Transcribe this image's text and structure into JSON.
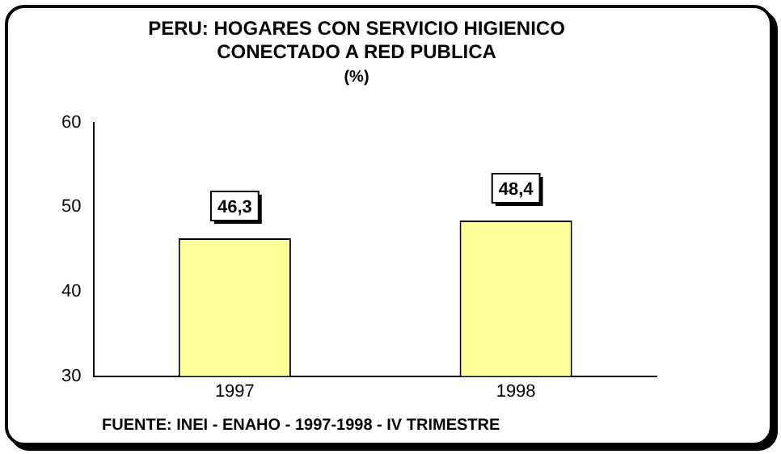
{
  "chart_data": {
    "type": "bar",
    "title": "PERU: HOGARES CON SERVICIO HIGIENICO\nCONECTADO A RED PUBLICA",
    "subtitle": "(%)",
    "categories": [
      "1997",
      "1998"
    ],
    "values": [
      46.3,
      48.4
    ],
    "value_labels": [
      "46,3",
      "48,4"
    ],
    "color": "#ffff99",
    "ylim": [
      30,
      60
    ],
    "yticks": [
      30,
      40,
      50,
      60
    ],
    "grid": false,
    "legend": false,
    "annotations": [
      "FUENTE: INEI - ENAHO - 1997-1998 - IV TRIMESTRE"
    ]
  }
}
